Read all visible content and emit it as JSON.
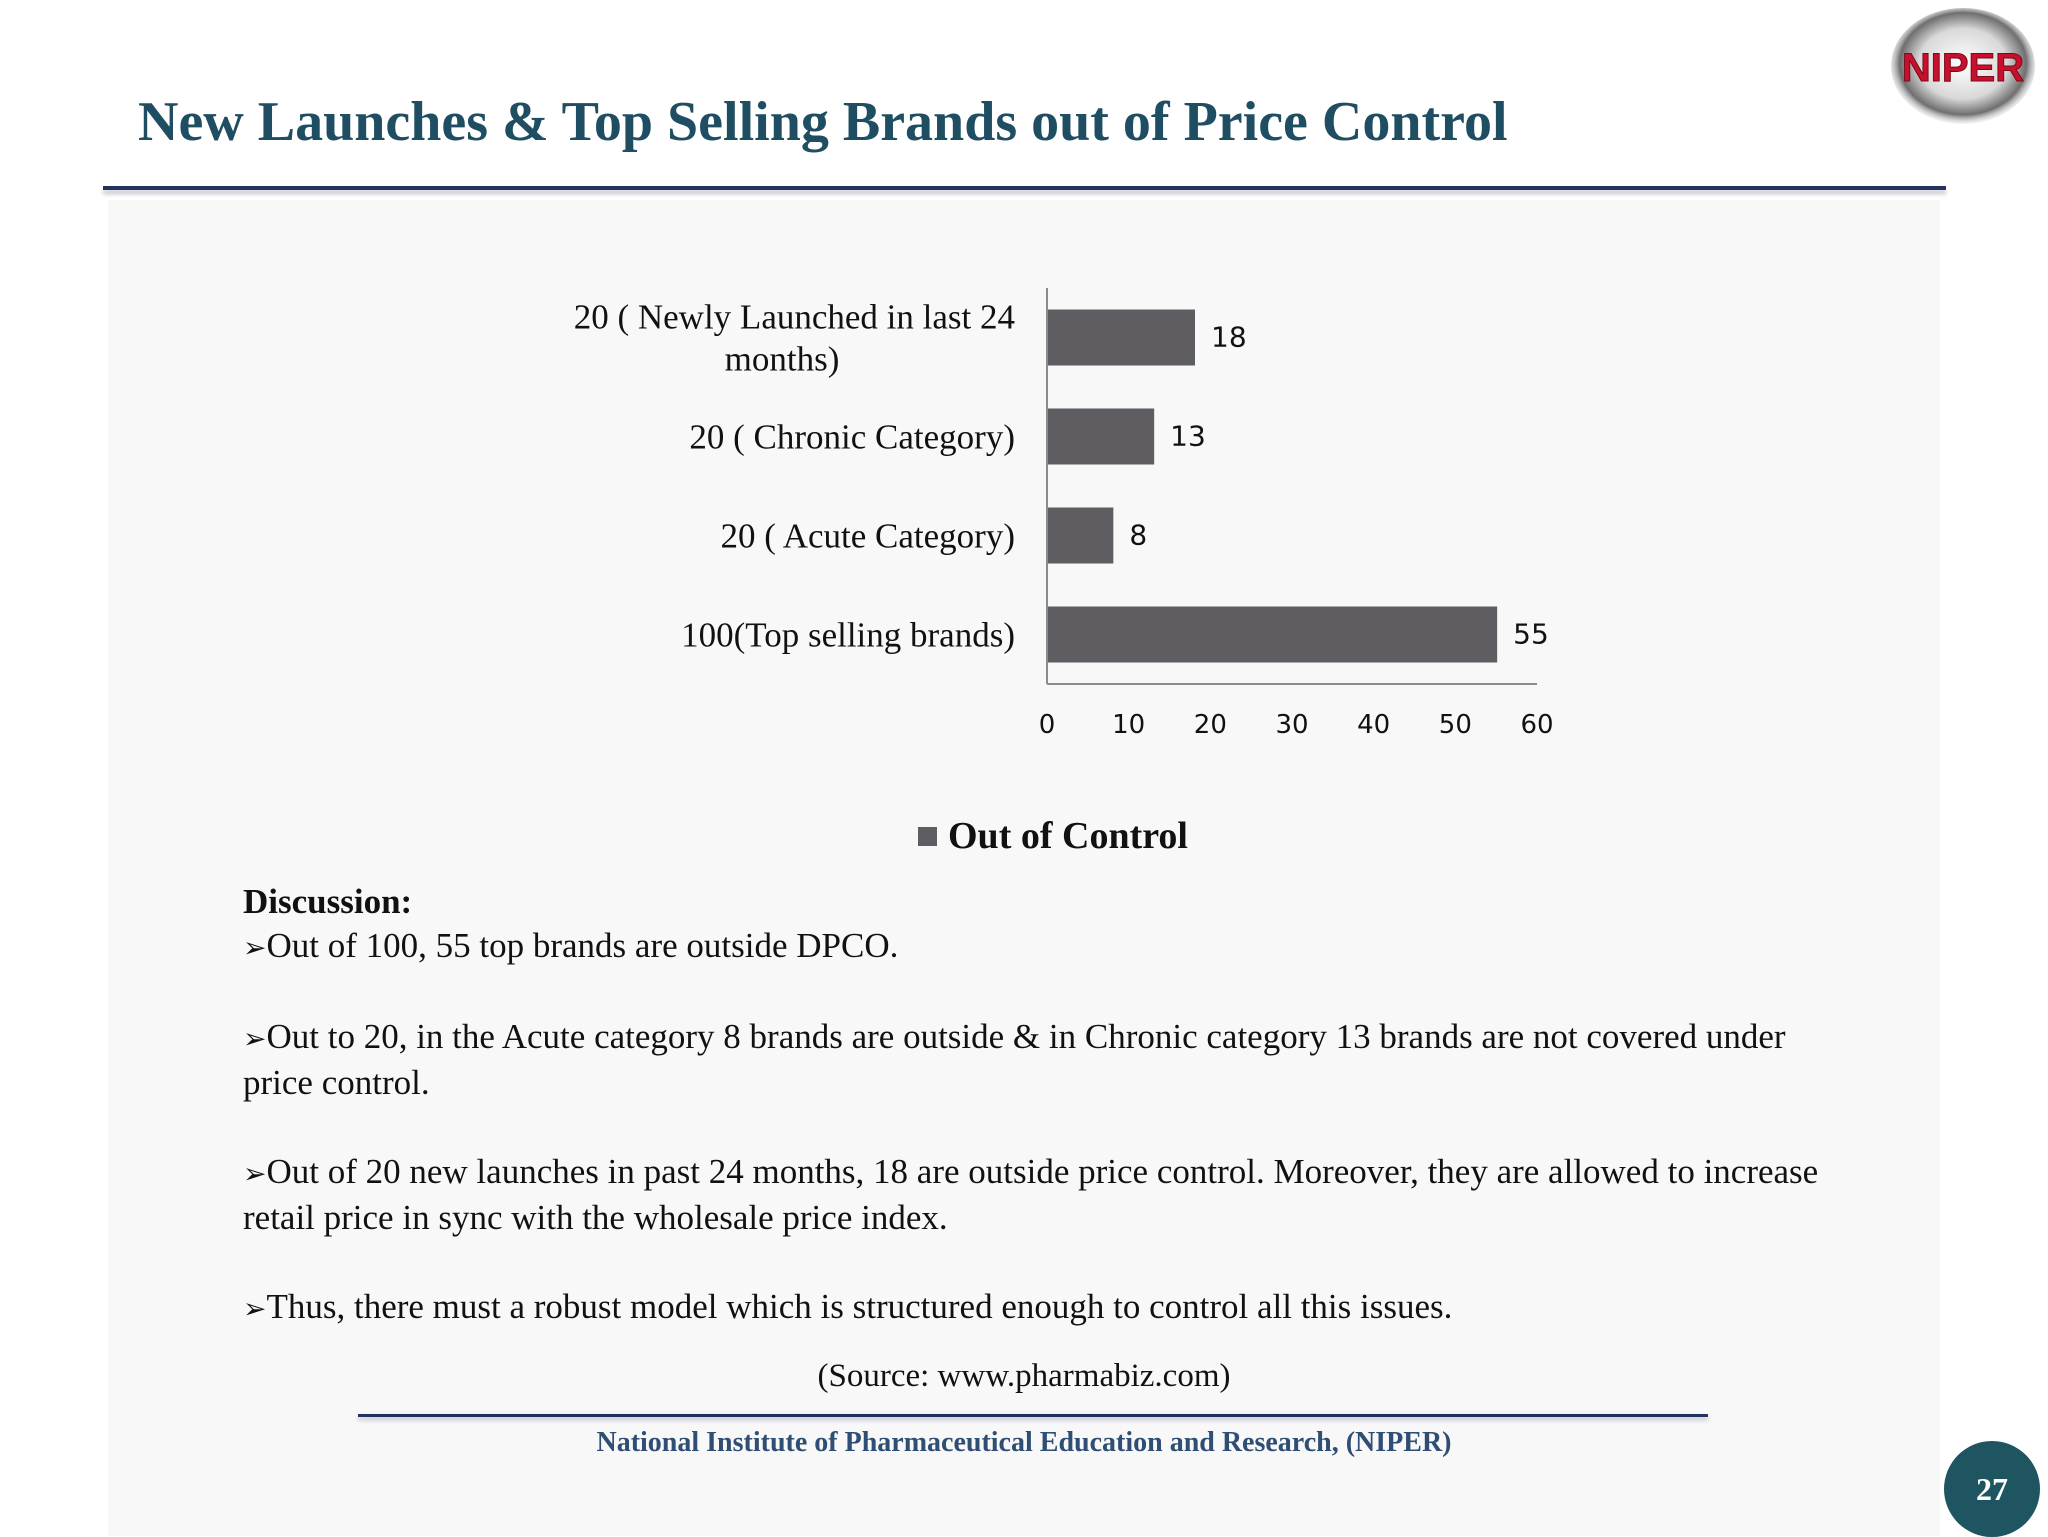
{
  "slide": {
    "title": "New Launches & Top Selling Brands out of Price Control",
    "logo_text": "NIPER",
    "page_number": "27"
  },
  "chart_data": {
    "type": "bar",
    "orientation": "horizontal",
    "categories": [
      "20 ( Newly Launched in last 24 months)",
      "20 ( Chronic Category)",
      "20 ( Acute Category)",
      "100(Top selling brands)"
    ],
    "series": [
      {
        "name": "Out of Control",
        "values": [
          18,
          13,
          8,
          55
        ],
        "color": "#5f5d61"
      }
    ],
    "xlim": [
      0,
      60
    ],
    "xticks": [
      0,
      10,
      20,
      30,
      40,
      50,
      60
    ],
    "data_labels": true,
    "grid": false,
    "legend": "bottom"
  },
  "discussion": {
    "heading": "Discussion:",
    "bullet_symbol": "➢",
    "bullets": [
      "Out of 100, 55 top brands are outside DPCO.",
      "Out to 20, in the Acute category 8 brands are outside & in Chronic category 13 brands are not covered under price control.",
      "Out of 20 new launches in past 24 months, 18 are outside price control. Moreover, they are allowed to increase retail price in sync with the wholesale price index.",
      "Thus, there must a robust model which is structured enough to control all this issues."
    ]
  },
  "source": "(Source: www.pharmabiz.com)",
  "footer": "National Institute of Pharmaceutical Education and Research, (NIPER)",
  "colors": {
    "title": "#1f4e63",
    "rule": "#24325e",
    "bar": "#5f5d61",
    "footer_text": "#2f4e74",
    "page_badge": "#1f5461",
    "logo_text": "#c8102e"
  }
}
